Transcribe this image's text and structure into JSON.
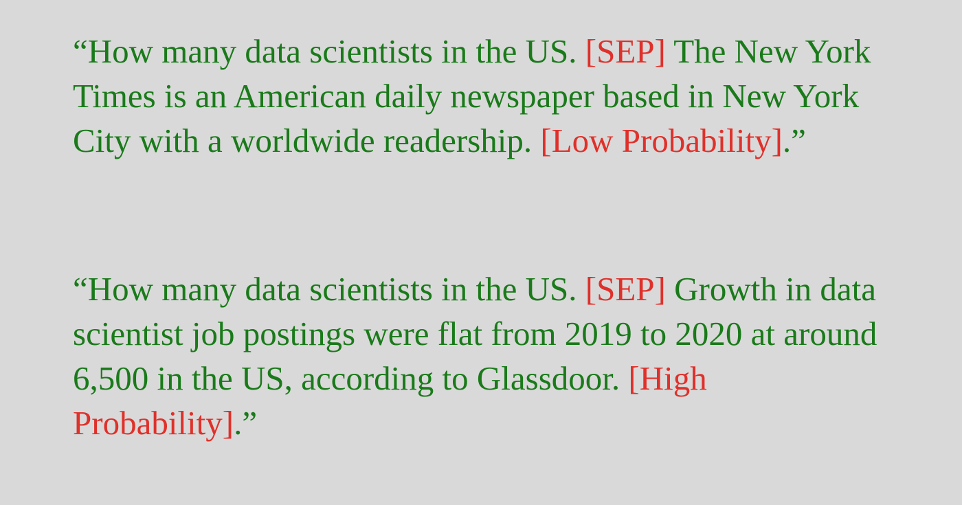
{
  "colors": {
    "background": "#d9d9d9",
    "text": "#1a7a1a",
    "tag": "#e0302a"
  },
  "examples": [
    {
      "open_quote": "“",
      "query": "How many data scientists in the US.",
      "separator": "[SEP]",
      "passage": "The New York Times is an American daily newspaper based in New York City with a worldwide readership.",
      "label": "[Low Probability]",
      "close": ".”"
    },
    {
      "open_quote": "“",
      "query": "How many data scientists in the US.",
      "separator": "[SEP]",
      "passage": "Growth in data scientist job postings were flat from 2019 to 2020 at around 6,500 in the US, according to Glassdoor.",
      "label": "[High Probability]",
      "close": ".”"
    }
  ]
}
